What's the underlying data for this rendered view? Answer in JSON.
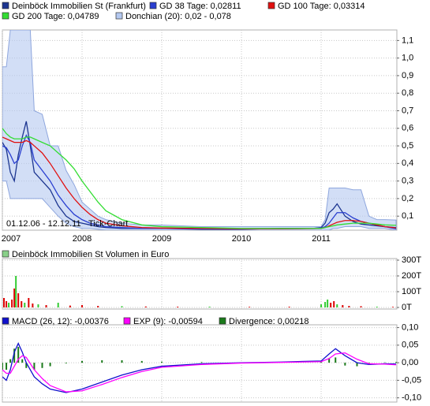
{
  "chart_data": [
    {
      "type": "line",
      "annotation": "01.12.06 - 12.12.11",
      "watermark": "Tick-Chart",
      "x": [
        2007.0,
        2007.05,
        2007.1,
        2007.15,
        2007.2,
        2007.25,
        2007.3,
        2007.35,
        2007.4,
        2007.5,
        2007.6,
        2007.7,
        2007.8,
        2007.9,
        2008.0,
        2008.1,
        2008.2,
        2008.3,
        2008.5,
        2008.75,
        2009.0,
        2009.5,
        2010.0,
        2010.5,
        2010.9,
        2011.0,
        2011.05,
        2011.1,
        2011.15,
        2011.2,
        2011.3,
        2011.4,
        2011.5,
        2011.6,
        2011.7,
        2011.8,
        2011.94
      ],
      "band": {
        "name": "Donchian (20): 0,02 - 0,078",
        "color": "#b4c8f0",
        "upper": [
          0.95,
          0.95,
          1.16,
          1.16,
          1.16,
          1.16,
          1.16,
          1.16,
          0.7,
          0.68,
          0.5,
          0.5,
          0.36,
          0.28,
          0.18,
          0.14,
          0.1,
          0.08,
          0.06,
          0.05,
          0.05,
          0.04,
          0.04,
          0.04,
          0.04,
          0.04,
          0.08,
          0.26,
          0.26,
          0.26,
          0.26,
          0.25,
          0.25,
          0.1,
          0.08,
          0.08,
          0.078
        ],
        "lower": [
          0.3,
          0.3,
          0.2,
          0.2,
          0.2,
          0.2,
          0.2,
          0.2,
          0.2,
          0.2,
          0.15,
          0.1,
          0.06,
          0.04,
          0.03,
          0.03,
          0.025,
          0.02,
          0.02,
          0.02,
          0.02,
          0.02,
          0.02,
          0.02,
          0.02,
          0.02,
          0.02,
          0.02,
          0.03,
          0.03,
          0.04,
          0.04,
          0.04,
          0.03,
          0.03,
          0.03,
          0.02
        ]
      },
      "series": [
        {
          "name": "Deinböck Immobilien St (Frankfurt)",
          "color": "#1c3590",
          "values": [
            0.52,
            0.48,
            0.35,
            0.3,
            0.45,
            0.55,
            0.64,
            0.5,
            0.35,
            0.3,
            0.25,
            0.16,
            0.1,
            0.07,
            0.06,
            0.05,
            0.04,
            0.035,
            0.03,
            0.03,
            0.03,
            0.025,
            0.025,
            0.03,
            0.03,
            0.035,
            0.06,
            0.12,
            0.14,
            0.17,
            0.1,
            0.07,
            0.055,
            0.05,
            0.045,
            0.04,
            0.035
          ]
        },
        {
          "name": "GD 38 Tage: 0,02811",
          "color": "#2a3fd0",
          "values": [
            0.5,
            0.49,
            0.45,
            0.4,
            0.42,
            0.5,
            0.56,
            0.52,
            0.42,
            0.36,
            0.3,
            0.22,
            0.16,
            0.11,
            0.08,
            0.06,
            0.05,
            0.04,
            0.035,
            0.03,
            0.03,
            0.028,
            0.027,
            0.028,
            0.03,
            0.032,
            0.04,
            0.06,
            0.09,
            0.12,
            0.12,
            0.09,
            0.07,
            0.06,
            0.05,
            0.04,
            0.028
          ]
        },
        {
          "name": "GD 100 Tage: 0,03314",
          "color": "#e01010",
          "values": [
            0.55,
            0.54,
            0.53,
            0.52,
            0.52,
            0.52,
            0.53,
            0.52,
            0.5,
            0.46,
            0.4,
            0.33,
            0.26,
            0.2,
            0.15,
            0.11,
            0.08,
            0.06,
            0.045,
            0.035,
            0.032,
            0.03,
            0.028,
            0.028,
            0.029,
            0.03,
            0.035,
            0.045,
            0.055,
            0.065,
            0.075,
            0.075,
            0.07,
            0.06,
            0.05,
            0.04,
            0.033
          ]
        },
        {
          "name": "GD 200 Tage: 0,04789",
          "color": "#33dd33",
          "values": [
            0.6,
            0.57,
            0.55,
            0.54,
            0.54,
            0.54,
            0.55,
            0.55,
            0.54,
            0.52,
            0.5,
            0.46,
            0.42,
            0.37,
            0.3,
            0.24,
            0.18,
            0.13,
            0.08,
            0.05,
            0.04,
            0.035,
            0.03,
            0.03,
            0.03,
            0.03,
            0.035,
            0.04,
            0.045,
            0.05,
            0.055,
            0.06,
            0.06,
            0.06,
            0.055,
            0.05,
            0.048
          ]
        }
      ],
      "xlim": [
        2007.0,
        2011.95
      ],
      "xticks": [
        2007,
        2008,
        2009,
        2010,
        2011
      ],
      "ylim": [
        0.02,
        1.16
      ],
      "yticks": [
        {
          "value": 0.1,
          "label": "0,1"
        },
        {
          "value": 0.2,
          "label": "0,2"
        },
        {
          "value": 0.3,
          "label": "0,3"
        },
        {
          "value": 0.4,
          "label": "0,4"
        },
        {
          "value": 0.5,
          "label": "0,5"
        },
        {
          "value": 0.6,
          "label": "0,6"
        },
        {
          "value": 0.7,
          "label": "0,7"
        },
        {
          "value": 0.8,
          "label": "0,8"
        },
        {
          "value": 0.9,
          "label": "0,9"
        },
        {
          "value": 1.0,
          "label": "1,0"
        },
        {
          "value": 1.1,
          "label": "1,1"
        }
      ],
      "grid": true
    },
    {
      "type": "bar",
      "series": [
        {
          "name": "Deinböck Immobilien St Volumen in Euro",
          "color": "#88d088",
          "x": [
            2007.02,
            2007.05,
            2007.08,
            2007.12,
            2007.15,
            2007.17,
            2007.2,
            2007.24,
            2007.28,
            2007.33,
            2007.38,
            2007.45,
            2007.55,
            2007.7,
            2007.85,
            2008.0,
            2008.2,
            2008.5,
            2008.8,
            2009.2,
            2009.6,
            2010.1,
            2010.6,
            2011.0,
            2011.05,
            2011.08,
            2011.12,
            2011.16,
            2011.2,
            2011.27,
            2011.35,
            2011.5,
            2011.7,
            2011.9
          ],
          "values": [
            60000,
            40000,
            30000,
            50000,
            120000,
            200000,
            90000,
            40000,
            30000,
            60000,
            25000,
            20000,
            15000,
            30000,
            12000,
            15000,
            10000,
            8000,
            6000,
            5000,
            5000,
            4000,
            5000,
            20000,
            35000,
            50000,
            30000,
            40000,
            20000,
            15000,
            10000,
            8000,
            5000,
            4000
          ],
          "bar_colors": [
            "#d00",
            "#d00",
            "#3c3",
            "#d00",
            "#d00",
            "#3c3",
            "#d00",
            "#d00",
            "#3c3",
            "#d00",
            "#d00",
            "#3c3",
            "#d00",
            "#3c3",
            "#d00",
            "#d00",
            "#d00",
            "#3c3",
            "#d00",
            "#d00",
            "#3c3",
            "#d00",
            "#d00",
            "#3c3",
            "#3c3",
            "#3c3",
            "#d00",
            "#d00",
            "#3c3",
            "#d00",
            "#d00",
            "#d00",
            "#3c3",
            "#d00"
          ]
        }
      ],
      "xlim": [
        2007.0,
        2011.95
      ],
      "ylim": [
        -10000,
        310000
      ],
      "yticks": [
        {
          "value": 0,
          "label": "0T"
        },
        {
          "value": 100000,
          "label": "100T"
        },
        {
          "value": 200000,
          "label": "200T"
        },
        {
          "value": 300000,
          "label": "300T"
        }
      ],
      "grid": true
    },
    {
      "type": "line",
      "x": [
        2007.0,
        2007.05,
        2007.1,
        2007.15,
        2007.2,
        2007.25,
        2007.3,
        2007.4,
        2007.5,
        2007.6,
        2007.8,
        2008.0,
        2008.25,
        2008.5,
        2008.75,
        2009.0,
        2009.5,
        2010.0,
        2010.5,
        2011.0,
        2011.1,
        2011.18,
        2011.3,
        2011.45,
        2011.6,
        2011.8,
        2011.94
      ],
      "series": [
        {
          "name": "MACD (26, 12): -0,00376",
          "color": "#1010cc",
          "values": [
            -0.04,
            -0.05,
            -0.02,
            0.03,
            0.055,
            0.03,
            0.0,
            -0.04,
            -0.06,
            -0.075,
            -0.085,
            -0.075,
            -0.055,
            -0.035,
            -0.02,
            -0.01,
            -0.003,
            0.0,
            0.002,
            0.005,
            0.025,
            0.04,
            0.02,
            0.0,
            -0.005,
            -0.003,
            -0.00376
          ]
        },
        {
          "name": "EXP (9): -0,00594",
          "color": "#ff00ff",
          "values": [
            -0.02,
            -0.03,
            -0.03,
            -0.01,
            0.01,
            0.02,
            0.015,
            -0.02,
            -0.045,
            -0.065,
            -0.083,
            -0.08,
            -0.062,
            -0.042,
            -0.025,
            -0.013,
            -0.005,
            -0.001,
            0.001,
            0.003,
            0.012,
            0.025,
            0.028,
            0.01,
            -0.003,
            -0.004,
            -0.00594
          ]
        },
        {
          "name": "Divergence: 0,00218",
          "color": "#1a7a1a",
          "style": "bar",
          "values": [
            -0.02,
            -0.02,
            0.01,
            0.04,
            0.045,
            0.01,
            -0.015,
            -0.02,
            -0.015,
            -0.01,
            -0.002,
            0.005,
            0.007,
            0.007,
            0.005,
            0.003,
            0.002,
            0.001,
            0.001,
            0.002,
            0.013,
            0.015,
            -0.008,
            -0.01,
            -0.002,
            0.001,
            0.00218
          ]
        }
      ],
      "xlim": [
        2007.0,
        2011.95
      ],
      "ylim": [
        -0.112,
        0.108
      ],
      "yticks": [
        {
          "value": -0.1,
          "label": "-0,10"
        },
        {
          "value": -0.05,
          "label": "-0,05"
        },
        {
          "value": 0,
          "label": "0,00"
        },
        {
          "value": 0.05,
          "label": "0,05"
        },
        {
          "value": 0.1,
          "label": "0,10"
        }
      ],
      "grid": true
    }
  ]
}
